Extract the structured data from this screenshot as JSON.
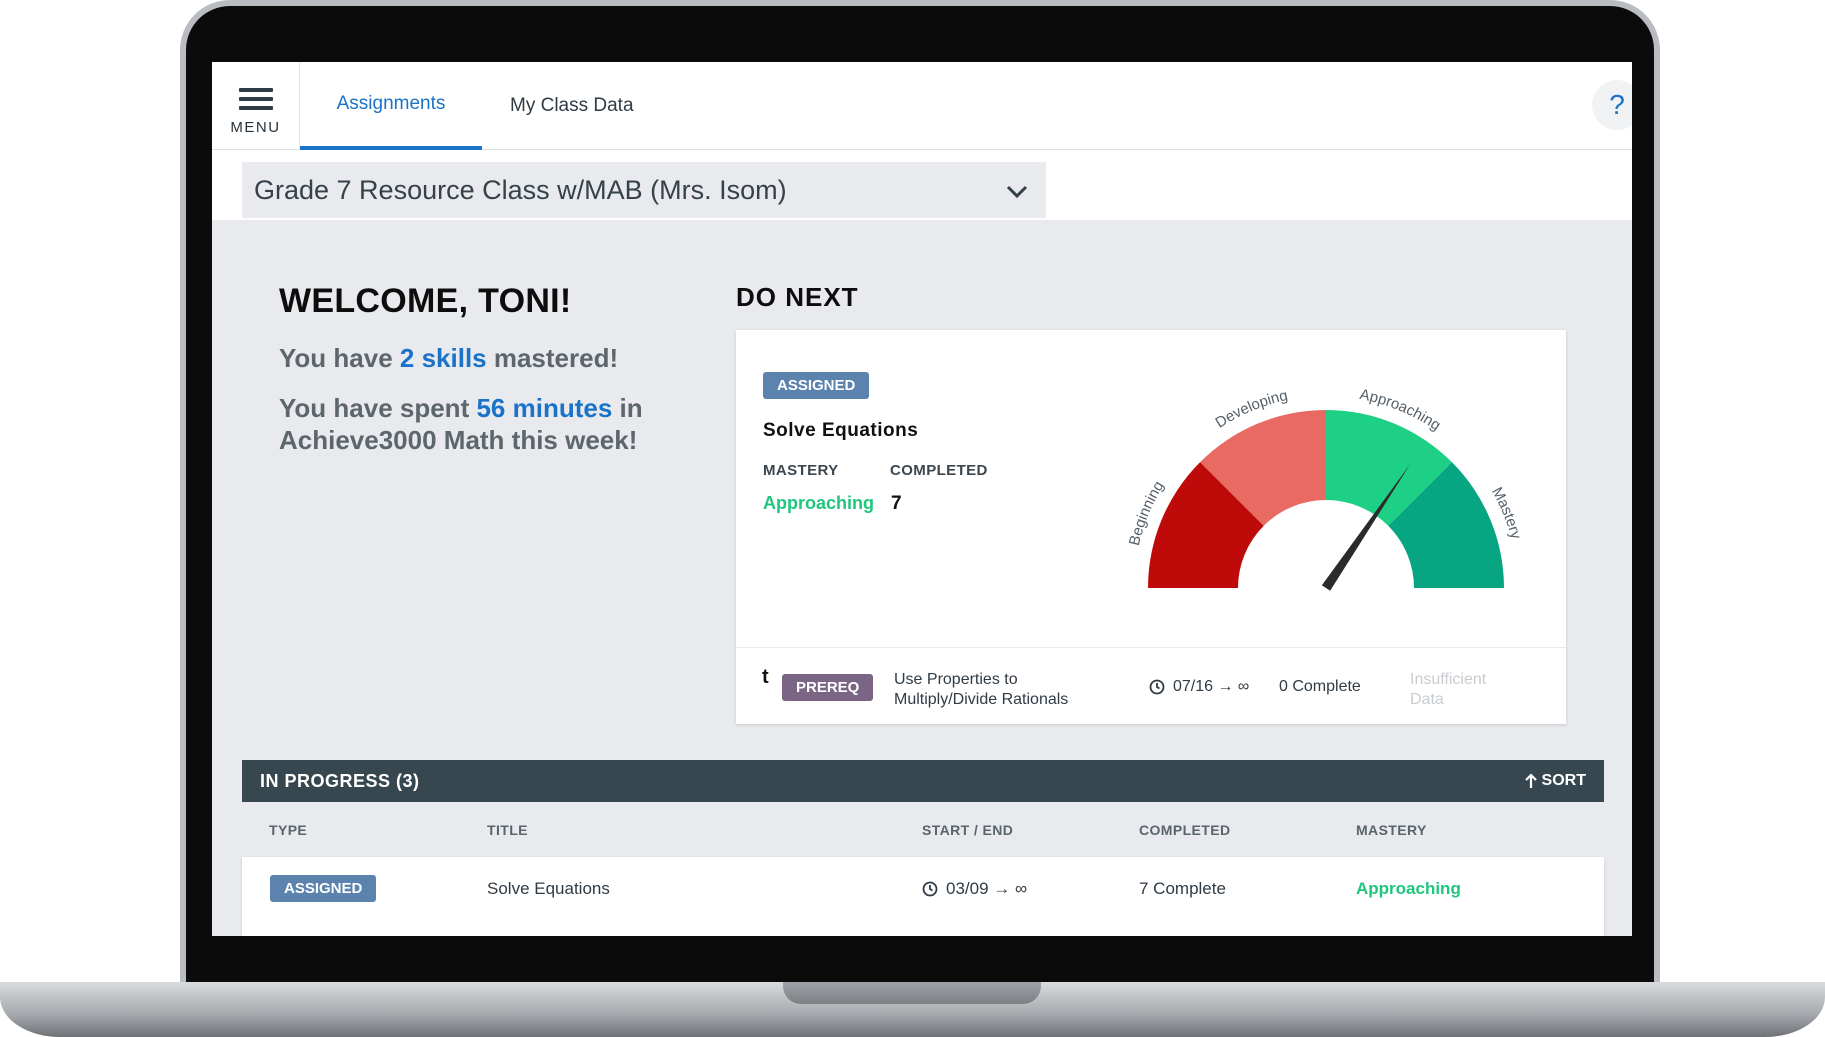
{
  "nav": {
    "menu_label": "MENU",
    "tabs": [
      {
        "label": "Assignments",
        "active": true
      },
      {
        "label": "My Class Data",
        "active": false
      }
    ],
    "help_label": "?"
  },
  "class_select": {
    "value": "Grade 7 Resource Class w/MAB (Mrs. Isom)"
  },
  "welcome": {
    "title": "WELCOME, TONI!",
    "line1_pre": "You have ",
    "line1_accent": "2 skills",
    "line1_post": " mastered!",
    "line2_pre": "You have spent ",
    "line2_accent": "56 minutes",
    "line2_post": " in Achieve3000 Math this week!"
  },
  "do_next": {
    "title": "DO NEXT",
    "badge": "ASSIGNED",
    "skill_title": "Solve Equations",
    "mastery_label": "MASTERY",
    "completed_label": "COMPLETED",
    "mastery_value": "Approaching",
    "completed_value": "7",
    "gauge": {
      "segments": [
        {
          "label": "Beginning",
          "color": "#bf0a0a"
        },
        {
          "label": "Developing",
          "color": "#e96a63"
        },
        {
          "label": "Approaching",
          "color": "#1ecf86"
        },
        {
          "label": "Mastery",
          "color": "#07a581"
        }
      ],
      "needle_level": 0.69
    },
    "prereq": {
      "marker": "t",
      "badge": "PREREQ",
      "title": "Use Properties to Multiply/Divide Rationals",
      "dates": "07/16 → ∞",
      "complete": "0 Complete",
      "mastery": "Insufficient Data"
    }
  },
  "in_progress": {
    "title": "IN PROGRESS (3)",
    "sort_label": "SORT",
    "columns": [
      "TYPE",
      "TITLE",
      "START / END",
      "COMPLETED",
      "MASTERY"
    ],
    "rows": [
      {
        "type": "ASSIGNED",
        "title": "Solve Equations",
        "dates": "03/09 → ∞",
        "completed": "7 Complete",
        "mastery": "Approaching"
      }
    ]
  },
  "colors": {
    "accent": "#1a73c8",
    "approaching": "#1fc77e",
    "header_bar": "#37474f",
    "assigned": "#5b83ad",
    "prereq": "#7b6585"
  }
}
